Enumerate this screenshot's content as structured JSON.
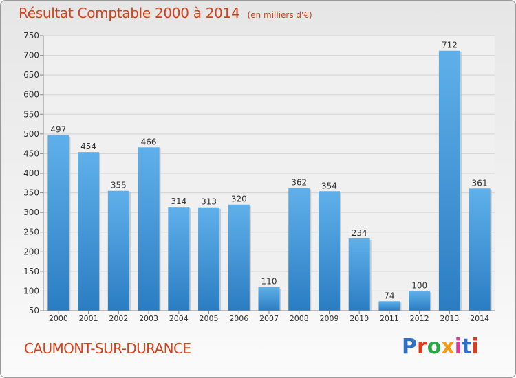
{
  "header": {
    "title": "Résultat Comptable 2000 à 2014",
    "subtitle": "(en milliers d'€)"
  },
  "commune": "CAUMONT-SUR-DURANCE",
  "logo": {
    "text": "Proxiti",
    "colors": [
      "#2f6fc4",
      "#e23a1a",
      "#2aa842",
      "#f39c12",
      "#d83a9a",
      "#2f6fc4",
      "#e23a1a"
    ]
  },
  "chart_data": {
    "type": "bar",
    "categories": [
      "2000",
      "2001",
      "2002",
      "2003",
      "2004",
      "2005",
      "2006",
      "2007",
      "2008",
      "2009",
      "2010",
      "2011",
      "2012",
      "2013",
      "2014"
    ],
    "values": [
      497,
      454,
      355,
      466,
      314,
      313,
      320,
      110,
      362,
      354,
      234,
      74,
      100,
      712,
      361
    ],
    "title": "Résultat Comptable 2000 à 2014",
    "subtitle": "(en milliers d'€)",
    "ylim": [
      50,
      750
    ],
    "yticks": [
      50,
      100,
      150,
      200,
      250,
      300,
      350,
      400,
      450,
      500,
      550,
      600,
      650,
      700,
      750
    ],
    "grid": true,
    "bar_color": "#3a93d8"
  }
}
